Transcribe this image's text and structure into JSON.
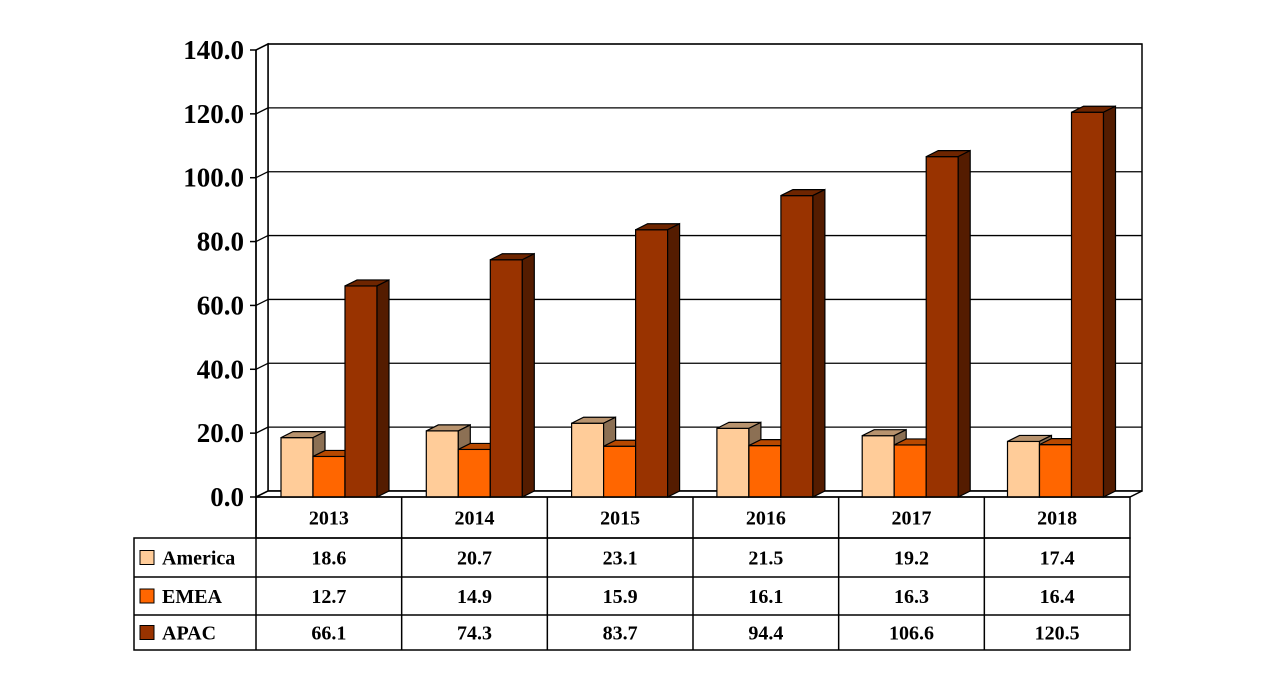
{
  "chart_data": {
    "type": "bar",
    "categories": [
      "2013",
      "2014",
      "2015",
      "2016",
      "2017",
      "2018"
    ],
    "series": [
      {
        "name": "America",
        "values": [
          18.6,
          20.7,
          23.1,
          21.5,
          19.2,
          17.4
        ],
        "color": "#FFCC99",
        "labels": [
          "18.6",
          "20.7",
          "23.1",
          "21.5",
          "19.2",
          "17.4"
        ]
      },
      {
        "name": "EMEA",
        "values": [
          12.7,
          14.9,
          15.9,
          16.1,
          16.3,
          16.4
        ],
        "color": "#FF6600",
        "labels": [
          "12.7",
          "14.9",
          "15.9",
          "16.1",
          "16.3",
          "16.4"
        ]
      },
      {
        "name": "APAC",
        "values": [
          66.1,
          74.3,
          83.7,
          94.4,
          106.6,
          120.5
        ],
        "color": "#993300",
        "labels": [
          "66.1",
          "74.3",
          "83.7",
          "94.4",
          "106.6",
          "120.5"
        ]
      }
    ],
    "yticks": [
      "0.0",
      "20.0",
      "40.0",
      "60.0",
      "80.0",
      "100.0",
      "120.0",
      "140.0"
    ],
    "ylim": [
      0,
      140
    ],
    "grid": true,
    "legend": "data-table",
    "style": "3d-clustered-column"
  }
}
